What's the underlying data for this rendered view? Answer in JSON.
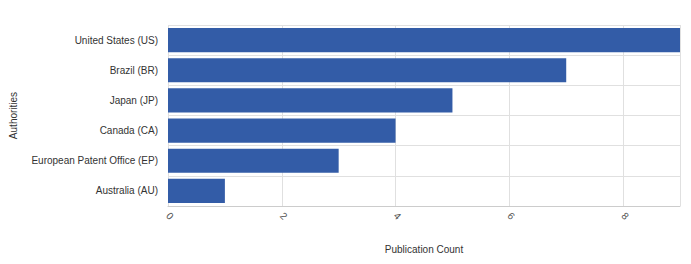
{
  "chart_data": {
    "type": "bar",
    "orientation": "horizontal",
    "x_label": "Publication Count",
    "y_label": "Authorities",
    "categories": [
      "United States (US)",
      "Brazil (BR)",
      "Japan (JP)",
      "Canada (CA)",
      "European Patent Office (EP)",
      "Australia (AU)"
    ],
    "values": [
      9,
      7,
      5,
      4,
      3,
      1
    ],
    "color": "#335ca7",
    "xlim": [
      0,
      9
    ],
    "xticks": [
      0,
      2,
      4,
      6,
      8
    ],
    "grid": true
  }
}
